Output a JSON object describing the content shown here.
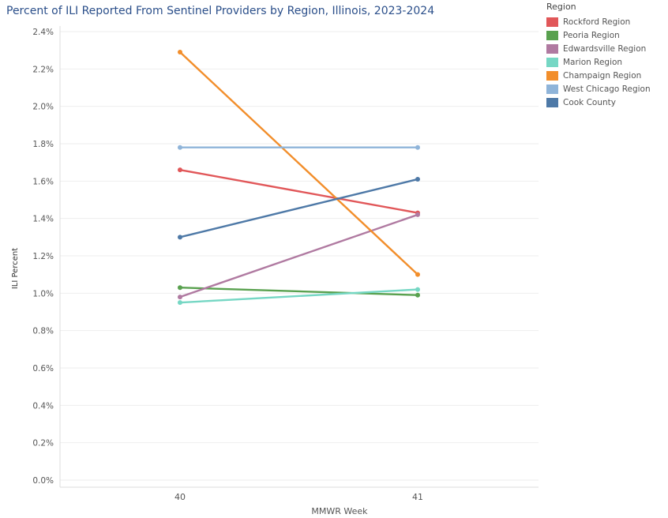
{
  "chart_data": {
    "type": "line",
    "title": "Percent of ILI Reported From Sentinel Providers by Region, Illinois, 2023-2024",
    "xlabel": "MMWR Week",
    "ylabel": "ILI Percent",
    "categories": [
      "40",
      "41"
    ],
    "ylim": [
      0,
      2.4
    ],
    "yticks": [
      0,
      0.2,
      0.4,
      0.6,
      0.8,
      1.0,
      1.2,
      1.4,
      1.6,
      1.8,
      2.0,
      2.2,
      2.4
    ],
    "ytick_labels": [
      "0.0%",
      "0.2%",
      "0.4%",
      "0.6%",
      "0.8%",
      "1.0%",
      "1.2%",
      "1.4%",
      "1.6%",
      "1.8%",
      "2.0%",
      "2.2%",
      "2.4%"
    ],
    "grid": true,
    "legend_title": "Region",
    "legend_position": "top-right",
    "series": [
      {
        "name": "Rockford Region",
        "color": "#e15759",
        "values": [
          1.66,
          1.43
        ]
      },
      {
        "name": "Peoria Region",
        "color": "#59a14f",
        "values": [
          1.03,
          0.99
        ]
      },
      {
        "name": "Edwardsville Region",
        "color": "#b07aa1",
        "values": [
          0.98,
          1.42
        ]
      },
      {
        "name": "Marion Region",
        "color": "#76d7c4",
        "values": [
          0.95,
          1.02
        ]
      },
      {
        "name": "Champaign Region",
        "color": "#f28e2b",
        "values": [
          2.29,
          1.1
        ]
      },
      {
        "name": "West Chicago Region",
        "color": "#8fb4d9",
        "values": [
          1.78,
          1.78
        ]
      },
      {
        "name": "Cook County",
        "color": "#4e79a7",
        "values": [
          1.3,
          1.61
        ]
      }
    ]
  }
}
